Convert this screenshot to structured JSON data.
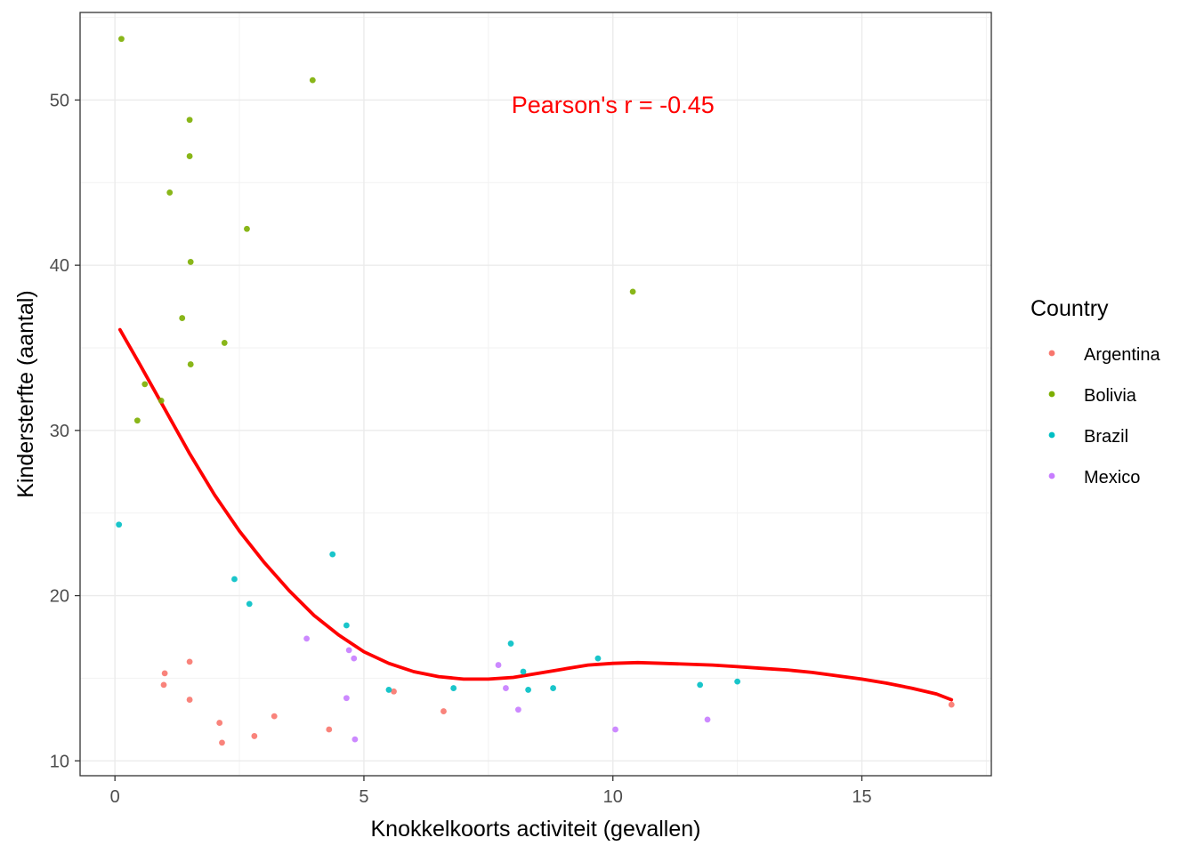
{
  "chart_data": {
    "type": "scatter",
    "title": "",
    "xlabel": "Knokkelkoorts activiteit (gevallen)",
    "ylabel": "Kindersterfte (aantal)",
    "xlim": [
      -0.7,
      17.6
    ],
    "ylim": [
      9.1,
      55.3
    ],
    "x_ticks": [
      0,
      5,
      10,
      15
    ],
    "y_ticks": [
      10,
      20,
      30,
      40,
      50
    ],
    "x_tick_labels": [
      "0",
      "5",
      "10",
      "15"
    ],
    "y_tick_labels": [
      "10",
      "20",
      "30",
      "40",
      "50"
    ],
    "grid": true,
    "legend": {
      "title": "Country",
      "position": "right"
    },
    "annotation": {
      "text": "Pearson's r =  -0.45",
      "x": 10.0,
      "y": 49.7,
      "color": "#ff0000"
    },
    "series": [
      {
        "name": "Argentina",
        "color": "#F8766D",
        "points": [
          [
            1.0,
            15.3
          ],
          [
            0.98,
            14.6
          ],
          [
            1.5,
            16.0
          ],
          [
            1.5,
            13.7
          ],
          [
            2.1,
            12.3
          ],
          [
            2.15,
            11.1
          ],
          [
            2.8,
            11.5
          ],
          [
            3.2,
            12.7
          ],
          [
            4.3,
            11.9
          ],
          [
            5.6,
            14.2
          ],
          [
            6.6,
            13.0
          ],
          [
            16.8,
            13.4
          ]
        ]
      },
      {
        "name": "Bolivia",
        "color": "#7CAE00",
        "points": [
          [
            0.13,
            53.7
          ],
          [
            3.97,
            51.2
          ],
          [
            1.5,
            48.8
          ],
          [
            1.5,
            46.6
          ],
          [
            1.1,
            44.4
          ],
          [
            2.65,
            42.2
          ],
          [
            1.52,
            40.2
          ],
          [
            10.4,
            38.4
          ],
          [
            1.35,
            36.8
          ],
          [
            2.2,
            35.3
          ],
          [
            1.52,
            34.0
          ],
          [
            0.6,
            32.8
          ],
          [
            0.93,
            31.8
          ],
          [
            0.45,
            30.6
          ]
        ]
      },
      {
        "name": "Brazil",
        "color": "#00BFC4",
        "points": [
          [
            0.08,
            24.3
          ],
          [
            4.37,
            22.5
          ],
          [
            2.4,
            21.0
          ],
          [
            2.7,
            19.5
          ],
          [
            4.65,
            18.2
          ],
          [
            5.5,
            14.3
          ],
          [
            6.8,
            14.4
          ],
          [
            7.95,
            17.1
          ],
          [
            8.2,
            15.4
          ],
          [
            8.3,
            14.3
          ],
          [
            8.8,
            14.4
          ],
          [
            9.7,
            16.2
          ],
          [
            11.75,
            14.6
          ],
          [
            12.5,
            14.8
          ]
        ]
      },
      {
        "name": "Mexico",
        "color": "#C77CFF",
        "points": [
          [
            3.85,
            17.4
          ],
          [
            4.7,
            16.7
          ],
          [
            4.8,
            16.2
          ],
          [
            4.65,
            13.8
          ],
          [
            4.82,
            11.3
          ],
          [
            7.7,
            15.8
          ],
          [
            7.85,
            14.4
          ],
          [
            8.1,
            13.1
          ],
          [
            10.05,
            11.9
          ],
          [
            11.9,
            12.5
          ]
        ]
      }
    ],
    "smooth_line": {
      "color": "#ff0000",
      "points": [
        [
          0.1,
          36.1
        ],
        [
          0.5,
          34.0
        ],
        [
          1.0,
          31.3
        ],
        [
          1.5,
          28.6
        ],
        [
          2.0,
          26.1
        ],
        [
          2.5,
          23.9
        ],
        [
          3.0,
          22.0
        ],
        [
          3.5,
          20.3
        ],
        [
          4.0,
          18.8
        ],
        [
          4.5,
          17.6
        ],
        [
          5.0,
          16.6
        ],
        [
          5.5,
          15.9
        ],
        [
          6.0,
          15.4
        ],
        [
          6.5,
          15.1
        ],
        [
          7.0,
          14.95
        ],
        [
          7.5,
          14.95
        ],
        [
          8.0,
          15.05
        ],
        [
          8.5,
          15.3
        ],
        [
          9.0,
          15.55
        ],
        [
          9.5,
          15.8
        ],
        [
          10.0,
          15.9
        ],
        [
          10.5,
          15.95
        ],
        [
          11.0,
          15.9
        ],
        [
          11.5,
          15.85
        ],
        [
          12.0,
          15.8
        ],
        [
          12.5,
          15.7
        ],
        [
          13.0,
          15.6
        ],
        [
          13.5,
          15.5
        ],
        [
          14.0,
          15.35
        ],
        [
          14.5,
          15.15
        ],
        [
          15.0,
          14.95
        ],
        [
          15.5,
          14.7
        ],
        [
          16.0,
          14.4
        ],
        [
          16.5,
          14.05
        ],
        [
          16.8,
          13.7
        ]
      ]
    }
  }
}
